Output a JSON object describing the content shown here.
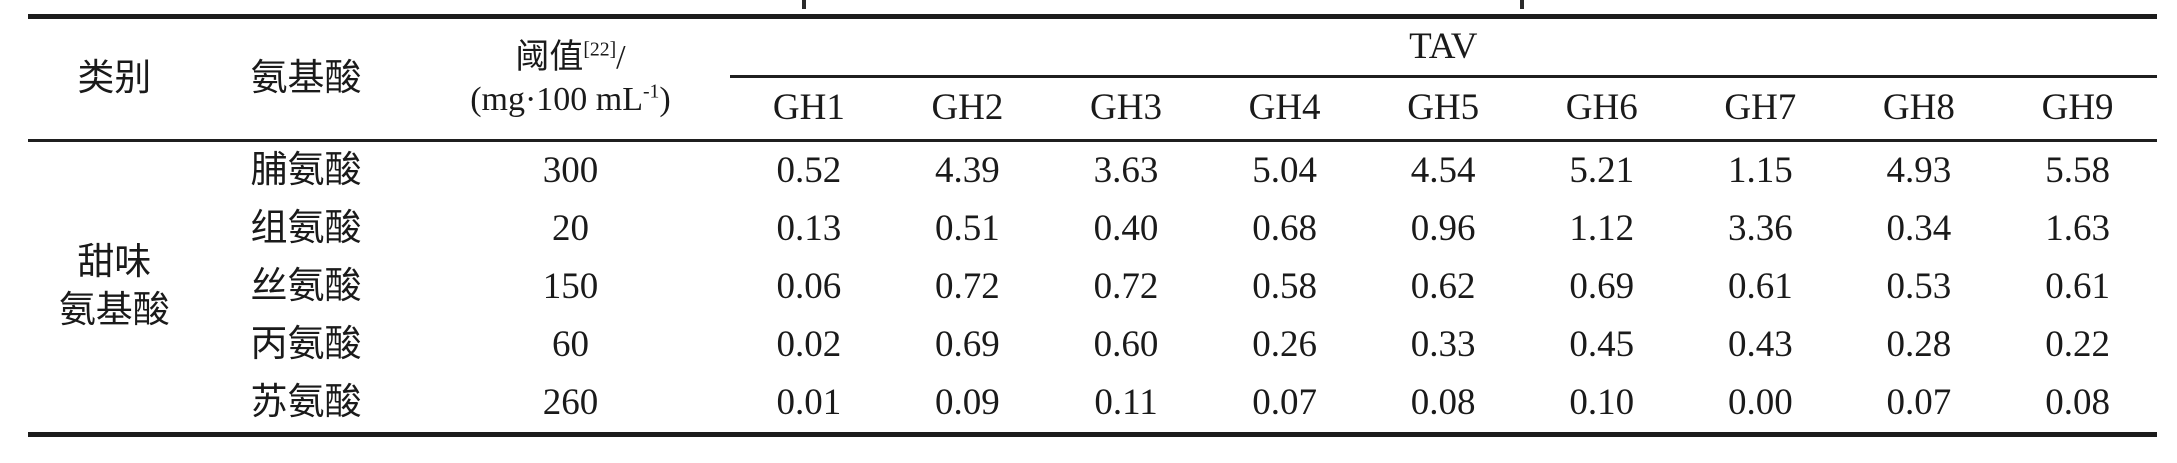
{
  "table": {
    "header": {
      "category": "类别",
      "amino_acid": "氨基酸",
      "threshold_label": "阈值",
      "threshold_ref": "[22]",
      "threshold_slash": "/",
      "threshold_unit_prefix": "(mg·100 mL",
      "threshold_unit_sup": "-1",
      "threshold_unit_suffix": ")",
      "tav": "TAV",
      "gh_columns": [
        "GH1",
        "GH2",
        "GH3",
        "GH4",
        "GH5",
        "GH6",
        "GH7",
        "GH8",
        "GH9"
      ]
    },
    "category_group": {
      "line1": "甜味",
      "line2": "氨基酸"
    },
    "rows": [
      {
        "amino_acid": "脯氨酸",
        "threshold": "300",
        "values": [
          "0.52",
          "4.39",
          "3.63",
          "5.04",
          "4.54",
          "5.21",
          "1.15",
          "4.93",
          "5.58"
        ]
      },
      {
        "amino_acid": "组氨酸",
        "threshold": "20",
        "values": [
          "0.13",
          "0.51",
          "0.40",
          "0.68",
          "0.96",
          "1.12",
          "3.36",
          "0.34",
          "1.63"
        ]
      },
      {
        "amino_acid": "丝氨酸",
        "threshold": "150",
        "values": [
          "0.06",
          "0.72",
          "0.72",
          "0.58",
          "0.62",
          "0.69",
          "0.61",
          "0.53",
          "0.61"
        ]
      },
      {
        "amino_acid": "丙氨酸",
        "threshold": "60",
        "values": [
          "0.02",
          "0.69",
          "0.60",
          "0.26",
          "0.33",
          "0.45",
          "0.43",
          "0.28",
          "0.22"
        ]
      },
      {
        "amino_acid": "苏氨酸",
        "threshold": "260",
        "values": [
          "0.01",
          "0.09",
          "0.11",
          "0.07",
          "0.08",
          "0.10",
          "0.00",
          "0.07",
          "0.08"
        ]
      }
    ],
    "colors": {
      "text": "#1a1a1a",
      "rule": "#1c1c1c",
      "background": "#ffffff"
    }
  }
}
